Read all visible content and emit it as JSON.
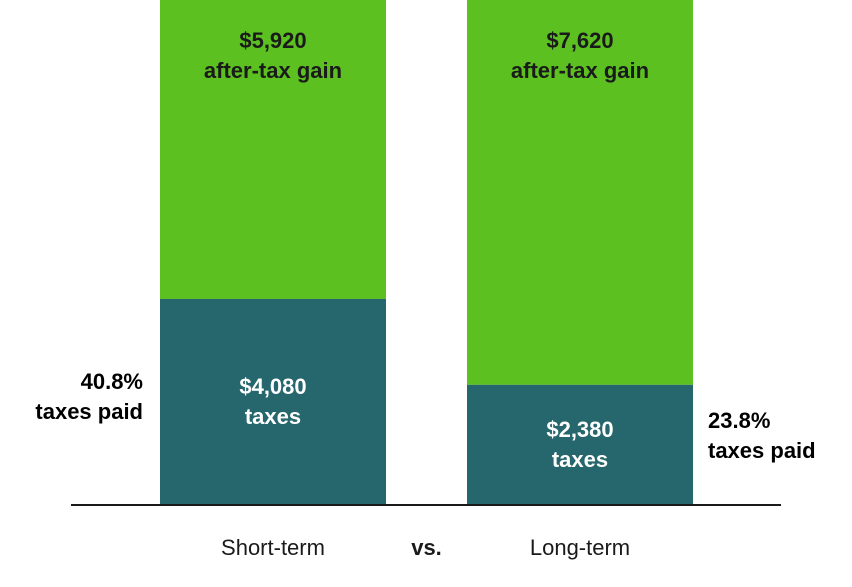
{
  "colors": {
    "after_tax_gain": "#5cc021",
    "taxes": "#26666d",
    "axis": "#1a1a1a"
  },
  "separator_label": "vs.",
  "chart_data": {
    "type": "bar",
    "stacked": true,
    "categories": [
      "Short-term",
      "Long-term"
    ],
    "series": [
      {
        "key": "taxes",
        "values": [
          4080,
          2380
        ],
        "labels": [
          {
            "amount": "$4,080",
            "caption": "taxes"
          },
          {
            "amount": "$2,380",
            "caption": "taxes"
          }
        ]
      },
      {
        "key": "after_tax_gain",
        "values": [
          5920,
          7620
        ],
        "labels": [
          {
            "amount": "$5,920",
            "caption": "after-tax gain"
          },
          {
            "amount": "$7,620",
            "caption": "after-tax gain"
          }
        ]
      }
    ],
    "annotations": [
      {
        "category": "Short-term",
        "rate": "40.8%",
        "text": "taxes paid"
      },
      {
        "category": "Long-term",
        "rate": "23.8%",
        "text": "taxes paid"
      }
    ],
    "ylim": [
      0,
      10000
    ],
    "grid": false,
    "legend": "none"
  }
}
